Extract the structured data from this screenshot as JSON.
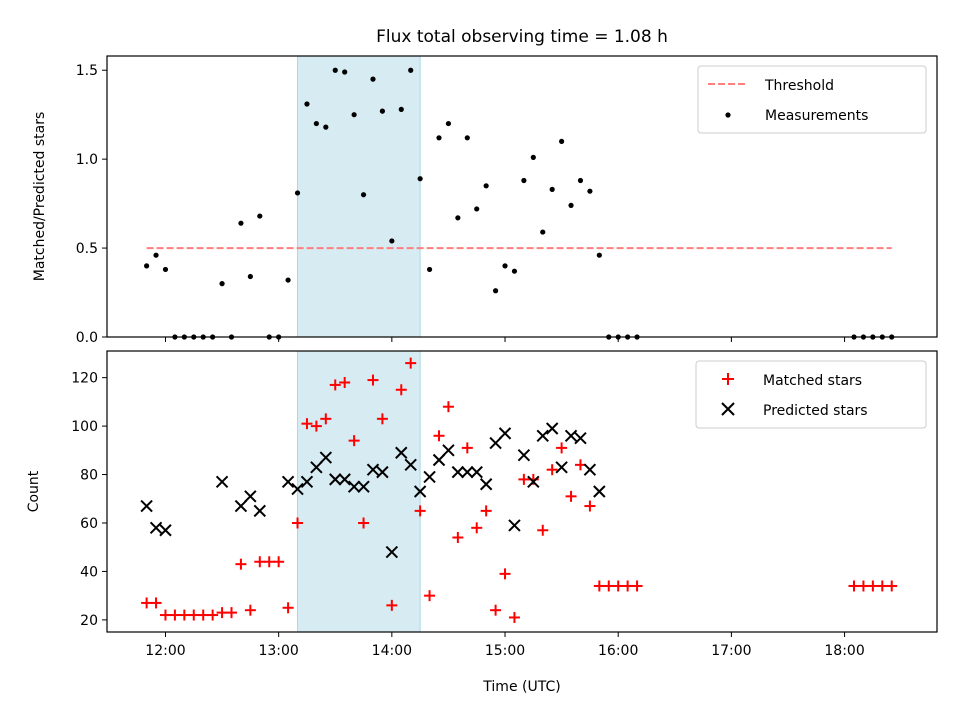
{
  "chart_data": [
    {
      "type": "scatter",
      "title": "Flux total observing time = 1.08 h",
      "xlabel": "",
      "ylabel": "Matched/Predicted stars",
      "xlim": [
        "11:29",
        "18:49"
      ],
      "ylim": [
        0,
        1.58
      ],
      "yticks": [
        0.0,
        0.5,
        1.0,
        1.5
      ],
      "ytick_labels": [
        "0.0",
        "0.5",
        "1.0",
        "1.5"
      ],
      "grid": false,
      "legend": "top-right",
      "highlight_span": [
        "13:10",
        "14:15"
      ],
      "threshold": {
        "name": "Threshold",
        "value": 0.5,
        "x_range": [
          "11:50",
          "18:25"
        ],
        "color": "#ff7f7f"
      },
      "series": [
        {
          "name": "Measurements",
          "color": "#000000",
          "marker": "dot",
          "x": [
            "11:50",
            "11:55",
            "12:00",
            "12:05",
            "12:10",
            "12:15",
            "12:20",
            "12:25",
            "12:30",
            "12:35",
            "12:40",
            "12:45",
            "12:50",
            "12:55",
            "13:00",
            "13:05",
            "13:10",
            "13:15",
            "13:20",
            "13:25",
            "13:30",
            "13:35",
            "13:40",
            "13:45",
            "13:50",
            "13:55",
            "14:00",
            "14:05",
            "14:10",
            "14:15",
            "14:20",
            "14:25",
            "14:30",
            "14:35",
            "14:40",
            "14:45",
            "14:50",
            "14:55",
            "15:00",
            "15:05",
            "15:10",
            "15:15",
            "15:20",
            "15:25",
            "15:30",
            "15:35",
            "15:40",
            "15:45",
            "15:50",
            "15:55",
            "16:00",
            "16:05",
            "16:10",
            "18:05",
            "18:10",
            "18:15",
            "18:20",
            "18:25"
          ],
          "y": [
            0.4,
            0.46,
            0.38,
            0.0,
            0.0,
            0.0,
            0.0,
            0.0,
            0.3,
            0.0,
            0.64,
            0.34,
            0.68,
            0.0,
            0.0,
            0.32,
            0.81,
            1.31,
            1.2,
            1.18,
            1.5,
            1.49,
            1.25,
            0.8,
            1.45,
            1.27,
            0.54,
            1.28,
            1.5,
            0.89,
            0.38,
            1.12,
            1.2,
            0.67,
            1.12,
            0.72,
            0.85,
            0.26,
            0.4,
            0.37,
            0.88,
            1.01,
            0.59,
            0.83,
            1.1,
            0.74,
            0.88,
            0.82,
            0.46,
            0.0,
            0.0,
            0.0,
            0.0,
            0.0,
            0.0,
            0.0,
            0.0,
            0.0
          ]
        }
      ]
    },
    {
      "type": "scatter",
      "title": "",
      "xlabel": "Time (UTC)",
      "ylabel": "Count",
      "xlim": [
        "11:29",
        "18:49"
      ],
      "xticks": [
        "12:00",
        "13:00",
        "14:00",
        "15:00",
        "16:00",
        "17:00",
        "18:00"
      ],
      "ylim": [
        15,
        131
      ],
      "yticks": [
        20,
        40,
        60,
        80,
        100,
        120
      ],
      "grid": false,
      "legend": "top-right",
      "highlight_span": [
        "13:10",
        "14:15"
      ],
      "series": [
        {
          "name": "Matched stars",
          "color": "#ff0000",
          "marker": "plus",
          "x": [
            "11:50",
            "11:55",
            "12:00",
            "12:05",
            "12:10",
            "12:15",
            "12:20",
            "12:25",
            "12:30",
            "12:35",
            "12:40",
            "12:45",
            "12:50",
            "12:55",
            "13:00",
            "13:05",
            "13:10",
            "13:15",
            "13:20",
            "13:25",
            "13:30",
            "13:35",
            "13:40",
            "13:45",
            "13:50",
            "13:55",
            "14:00",
            "14:05",
            "14:10",
            "14:15",
            "14:20",
            "14:25",
            "14:30",
            "14:35",
            "14:40",
            "14:45",
            "14:50",
            "14:55",
            "15:00",
            "15:05",
            "15:10",
            "15:15",
            "15:20",
            "15:25",
            "15:30",
            "15:35",
            "15:40",
            "15:45",
            "15:50",
            "15:55",
            "16:00",
            "16:05",
            "16:10",
            "18:05",
            "18:10",
            "18:15",
            "18:20",
            "18:25"
          ],
          "y": [
            27,
            27,
            22,
            22,
            22,
            22,
            22,
            22,
            23,
            23,
            43,
            24,
            44,
            44,
            44,
            25,
            60,
            101,
            100,
            103,
            117,
            118,
            94,
            60,
            119,
            103,
            26,
            115,
            126,
            65,
            30,
            96,
            108,
            54,
            91,
            58,
            65,
            24,
            39,
            21,
            78,
            78,
            57,
            82,
            91,
            71,
            84,
            67,
            34,
            34,
            34,
            34,
            34,
            34,
            34,
            34,
            34,
            34
          ]
        },
        {
          "name": "Predicted stars",
          "color": "#000000",
          "marker": "x",
          "x": [
            "11:50",
            "11:55",
            "12:00",
            "12:30",
            "12:40",
            "12:45",
            "12:50",
            "13:05",
            "13:10",
            "13:15",
            "13:20",
            "13:25",
            "13:30",
            "13:35",
            "13:40",
            "13:45",
            "13:50",
            "13:55",
            "14:00",
            "14:05",
            "14:10",
            "14:15",
            "14:20",
            "14:25",
            "14:30",
            "14:35",
            "14:40",
            "14:45",
            "14:50",
            "14:55",
            "15:00",
            "15:05",
            "15:10",
            "15:15",
            "15:20",
            "15:25",
            "15:30",
            "15:35",
            "15:40",
            "15:45",
            "15:50"
          ],
          "y": [
            67,
            58,
            57,
            77,
            67,
            71,
            65,
            77,
            74,
            77,
            83,
            87,
            78,
            78,
            75,
            75,
            82,
            81,
            48,
            89,
            84,
            73,
            79,
            86,
            90,
            81,
            81,
            81,
            76,
            93,
            97,
            59,
            88,
            77,
            96,
            99,
            83,
            96,
            95,
            82,
            73
          ]
        }
      ]
    }
  ]
}
